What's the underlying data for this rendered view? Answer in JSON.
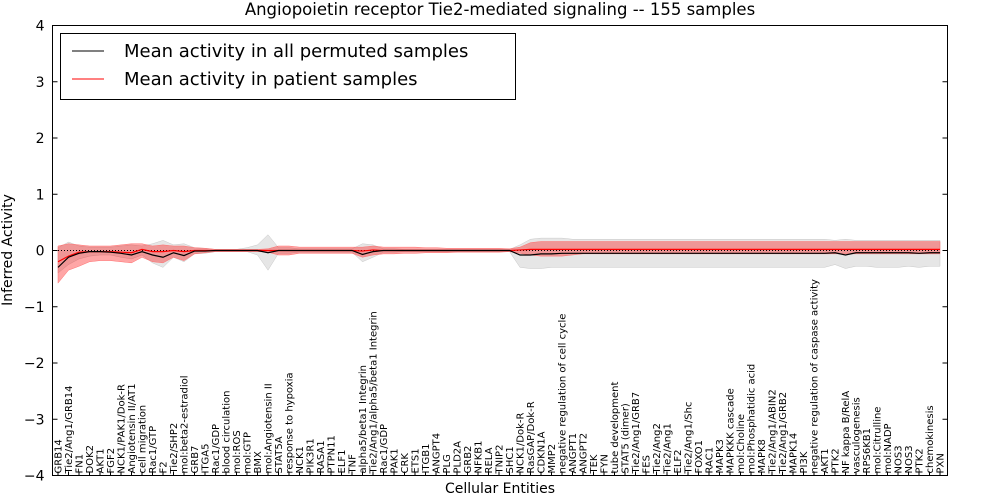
{
  "chart_data": {
    "type": "line",
    "title": "Angiopoietin receptor Tie2-mediated signaling -- 155 samples",
    "xlabel": "Cellular Entities",
    "ylabel": "Inferred Activity",
    "ylim": [
      -4,
      4
    ],
    "yticks": [
      "−4",
      "−3",
      "−2",
      "−1",
      "0",
      "1",
      "2",
      "3",
      "4"
    ],
    "grid": false,
    "legend_position": "top-left",
    "categories": [
      "GRB14",
      "Tie2/Ang1/GRB14",
      "FN1",
      "DOK2",
      "AKT1",
      "FGF2",
      "NCK1/PAK1/Dok-R",
      "Angiotensin II/AT1",
      "cell migration",
      "Rac1/GTP",
      "F2",
      "Tie2/SHP2",
      "mol:beta2-estradiol",
      "GRB7",
      "ITGA5",
      "Rac1/GDP",
      "blood circulation",
      "mol:ROS",
      "mol:GTP",
      "BMX",
      "mol:Angiotensin II",
      "STAT5A",
      "response to hypoxia",
      "NCK1",
      "PIK3R1",
      "RASA1",
      "PTPN11",
      "ELF1",
      "TNF",
      "alpha5/beta1 Integrin",
      "Tie2/Ang1/alpha5/beta1 Integrin",
      "Rac1/GDP",
      "PAK1",
      "CRK",
      "ETS1",
      "ITGB1",
      "ANGPT4",
      "PLG",
      "PLD2A",
      "GRB2",
      "NFKB1",
      "RELA",
      "TNIP2",
      "SHC1",
      "NCK1/Dok-R",
      "RasGAP/Dok-R",
      "CDKN1A",
      "MMP2",
      "negative regulation of cell cycle",
      "ANGPT1",
      "ANGPT2",
      "TEK",
      "FYN",
      "tube development",
      "STAT5 (dimer)",
      "Tie2/Ang1/GRB7",
      "FES",
      "Tie2/Ang2",
      "Tie2/Ang1",
      "ELF2",
      "Tie2/Ang1/Shc",
      "FOXO1",
      "RAC1",
      "MAPK3",
      "MAPKKK cascade",
      "mol:Choline",
      "mol:Phosphatidic acid",
      "MAPK8",
      "Tie2/Ang1/ABIN2",
      "Tie2/Ang1/GRB2",
      "MAPK14",
      "PI3K",
      "negative regulation of caspase activity",
      "AKT1",
      "PTK2",
      "NF kappa B/RelA",
      "vasculogenesis",
      "RPS6KB1",
      "mol:Citrulline",
      "mol:NADP",
      "NOS3",
      "NOS3",
      "PTK2",
      "chemokinesis",
      "PXN"
    ],
    "series": [
      {
        "name": "Mean activity in all permuted samples",
        "color": "#000000",
        "values": [
          -0.3,
          -0.12,
          -0.05,
          -0.02,
          -0.02,
          -0.03,
          -0.05,
          -0.08,
          -0.02,
          -0.08,
          -0.12,
          -0.04,
          -0.09,
          -0.01,
          -0.01,
          0,
          0,
          0,
          0,
          0,
          -0.04,
          0,
          0,
          0,
          0,
          0,
          0,
          0,
          0,
          -0.07,
          -0.02,
          0,
          0,
          0,
          0,
          0,
          0,
          0,
          0,
          0,
          0,
          0,
          0,
          0,
          -0.08,
          -0.08,
          -0.06,
          -0.06,
          -0.05,
          -0.05,
          -0.05,
          -0.05,
          -0.05,
          -0.05,
          -0.05,
          -0.05,
          -0.05,
          -0.05,
          -0.05,
          -0.05,
          -0.05,
          -0.05,
          -0.05,
          -0.05,
          -0.05,
          -0.05,
          -0.05,
          -0.05,
          -0.05,
          -0.05,
          -0.05,
          -0.05,
          -0.05,
          -0.05,
          -0.04,
          -0.08,
          -0.04,
          -0.04,
          -0.04,
          -0.04,
          -0.04,
          -0.04,
          -0.05,
          -0.04,
          -0.04
        ],
        "band_lower": [
          -0.4,
          -0.25,
          -0.15,
          -0.1,
          -0.08,
          -0.08,
          -0.12,
          -0.15,
          -0.08,
          -0.22,
          -0.3,
          -0.12,
          -0.2,
          -0.06,
          -0.05,
          -0.02,
          -0.02,
          -0.02,
          -0.02,
          -0.08,
          -0.35,
          -0.05,
          -0.05,
          -0.03,
          -0.03,
          -0.03,
          -0.03,
          -0.03,
          -0.03,
          -0.2,
          -0.12,
          -0.03,
          -0.03,
          -0.02,
          -0.02,
          -0.02,
          -0.02,
          -0.02,
          -0.02,
          -0.02,
          -0.02,
          -0.02,
          -0.02,
          -0.02,
          -0.3,
          -0.32,
          -0.32,
          -0.3,
          -0.3,
          -0.3,
          -0.3,
          -0.3,
          -0.3,
          -0.3,
          -0.3,
          -0.3,
          -0.3,
          -0.3,
          -0.3,
          -0.3,
          -0.3,
          -0.3,
          -0.3,
          -0.3,
          -0.3,
          -0.3,
          -0.3,
          -0.3,
          -0.3,
          -0.3,
          -0.3,
          -0.3,
          -0.3,
          -0.3,
          -0.25,
          -0.32,
          -0.28,
          -0.28,
          -0.3,
          -0.3,
          -0.3,
          -0.28,
          -0.3,
          -0.28,
          -0.28
        ],
        "band_upper": [
          0.05,
          0.15,
          0.08,
          0.06,
          0.06,
          0.06,
          0.08,
          0.1,
          0.08,
          0.12,
          0.18,
          0.1,
          0.12,
          0.05,
          0.04,
          0.02,
          0.02,
          0.02,
          0.05,
          0.1,
          0.28,
          0.05,
          0.05,
          0.03,
          0.03,
          0.03,
          0.03,
          0.03,
          0.03,
          0.12,
          0.1,
          0.03,
          0.03,
          0.02,
          0.02,
          0.02,
          0.02,
          0.02,
          0.02,
          0.02,
          0.02,
          0.02,
          0.02,
          0.02,
          0.1,
          0.2,
          0.22,
          0.22,
          0.22,
          0.2,
          0.2,
          0.2,
          0.2,
          0.2,
          0.2,
          0.2,
          0.2,
          0.2,
          0.2,
          0.2,
          0.2,
          0.2,
          0.2,
          0.2,
          0.2,
          0.2,
          0.2,
          0.2,
          0.2,
          0.2,
          0.2,
          0.2,
          0.2,
          0.2,
          0.18,
          0.2,
          0.18,
          0.18,
          0.18,
          0.18,
          0.18,
          0.18,
          0.18,
          0.18,
          0.18
        ]
      },
      {
        "name": "Mean activity in patient samples",
        "color": "#ff0000",
        "values": [
          -0.2,
          -0.1,
          -0.03,
          -0.02,
          -0.02,
          -0.02,
          -0.03,
          -0.04,
          0.02,
          -0.02,
          -0.02,
          0,
          -0.02,
          0,
          0,
          0,
          0,
          0,
          0,
          0,
          0,
          0,
          0,
          0,
          0,
          0,
          0,
          0,
          0,
          -0.01,
          0.01,
          0,
          0,
          0,
          0,
          0,
          0,
          0,
          0,
          0,
          0,
          0,
          0,
          0,
          0.01,
          0.02,
          0.02,
          0.02,
          0.02,
          0.02,
          0.02,
          0.02,
          0.02,
          0.02,
          0.02,
          0.02,
          0.02,
          0.02,
          0.02,
          0.02,
          0.02,
          0.02,
          0.02,
          0.02,
          0.02,
          0.02,
          0.02,
          0.02,
          0.02,
          0.02,
          0.02,
          0.02,
          0.02,
          0.02,
          0.02,
          0.02,
          0.02,
          0.02,
          0.02,
          0.02,
          0.02,
          0.02,
          0.02,
          0.02,
          0.02
        ],
        "band_lower": [
          -0.58,
          -0.35,
          -0.28,
          -0.2,
          -0.18,
          -0.18,
          -0.2,
          -0.22,
          -0.12,
          -0.2,
          -0.22,
          -0.12,
          -0.18,
          -0.06,
          -0.04,
          -0.02,
          -0.02,
          -0.02,
          -0.02,
          -0.02,
          -0.03,
          -0.08,
          -0.08,
          -0.05,
          -0.05,
          -0.05,
          -0.05,
          -0.05,
          -0.05,
          -0.12,
          -0.08,
          -0.06,
          -0.06,
          -0.05,
          -0.05,
          -0.04,
          -0.04,
          -0.04,
          -0.03,
          -0.03,
          -0.03,
          -0.03,
          -0.03,
          -0.02,
          -0.05,
          -0.08,
          -0.1,
          -0.1,
          -0.1,
          -0.08,
          -0.06,
          -0.06,
          -0.06,
          -0.06,
          -0.06,
          -0.06,
          -0.06,
          -0.06,
          -0.06,
          -0.06,
          -0.06,
          -0.06,
          -0.06,
          -0.06,
          -0.06,
          -0.06,
          -0.06,
          -0.06,
          -0.06,
          -0.06,
          -0.06,
          -0.06,
          -0.06,
          -0.06,
          -0.06,
          -0.06,
          -0.06,
          -0.06,
          -0.06,
          -0.06,
          -0.06,
          -0.06,
          -0.06,
          -0.06,
          -0.06
        ],
        "band_upper": [
          0.08,
          0.12,
          0.1,
          0.08,
          0.08,
          0.08,
          0.1,
          0.12,
          0.12,
          0.08,
          0.1,
          0.08,
          0.08,
          0.05,
          0.04,
          0.02,
          0.02,
          0.02,
          0.02,
          0.02,
          0.03,
          0.08,
          0.08,
          0.06,
          0.06,
          0.06,
          0.06,
          0.06,
          0.06,
          0.06,
          0.08,
          0.06,
          0.06,
          0.06,
          0.06,
          0.05,
          0.05,
          0.04,
          0.04,
          0.04,
          0.04,
          0.04,
          0.04,
          0.03,
          0.06,
          0.14,
          0.16,
          0.16,
          0.16,
          0.16,
          0.16,
          0.16,
          0.16,
          0.16,
          0.16,
          0.16,
          0.16,
          0.16,
          0.16,
          0.16,
          0.16,
          0.16,
          0.16,
          0.16,
          0.16,
          0.16,
          0.16,
          0.16,
          0.16,
          0.16,
          0.16,
          0.16,
          0.16,
          0.16,
          0.16,
          0.16,
          0.16,
          0.16,
          0.16,
          0.16,
          0.16,
          0.16,
          0.16,
          0.16,
          0.16
        ]
      }
    ]
  }
}
